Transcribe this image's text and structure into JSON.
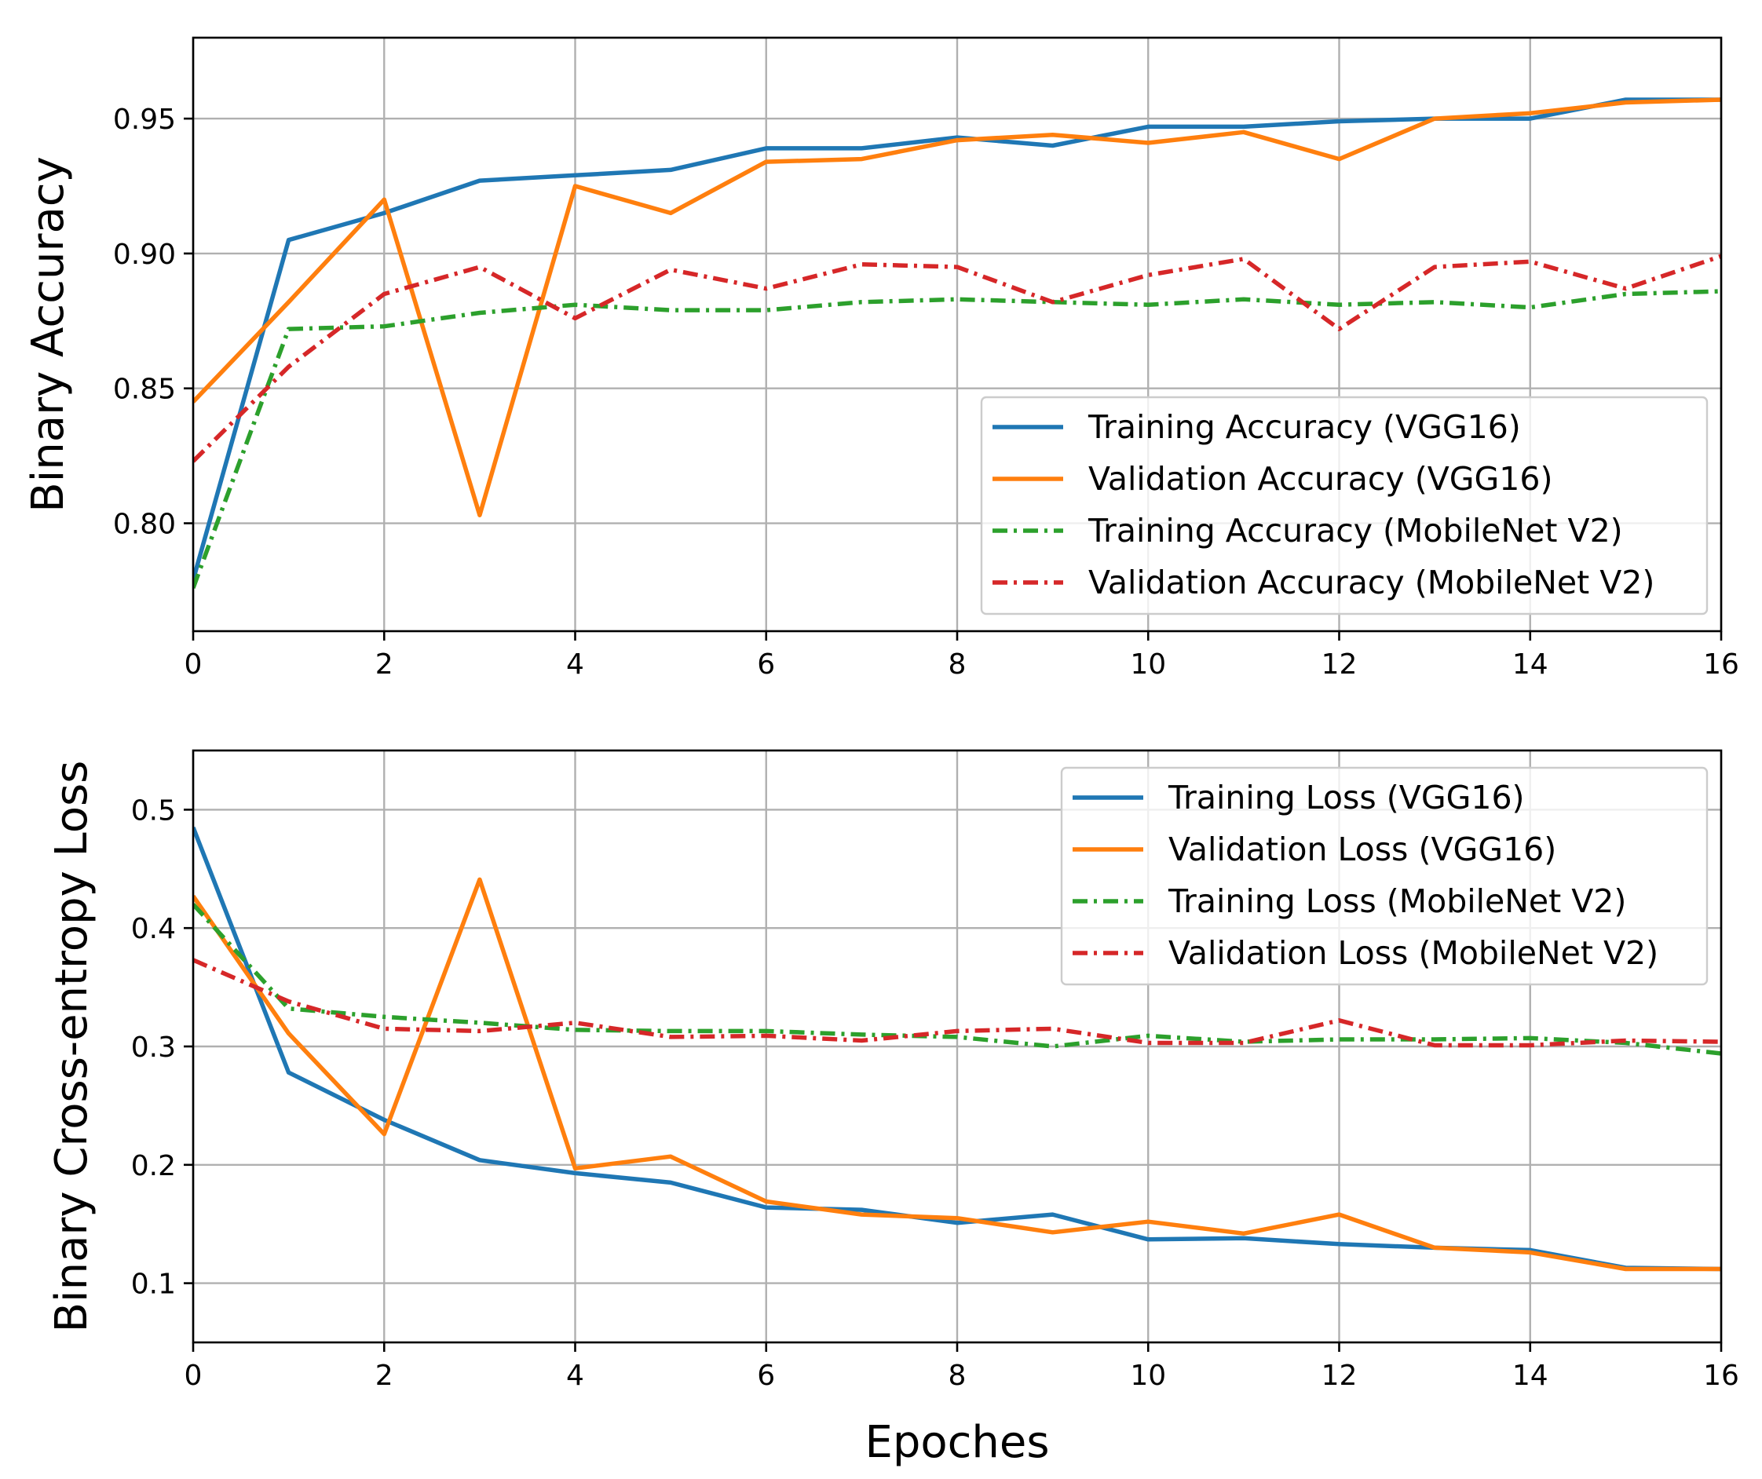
{
  "chart_data": [
    {
      "type": "line",
      "id": "accuracy",
      "ylabel": "Binary Accuracy",
      "xlabel": "",
      "xlim": [
        0,
        16
      ],
      "ylim": [
        0.76,
        0.98
      ],
      "xticks": [
        0,
        2,
        4,
        6,
        8,
        10,
        12,
        14,
        16
      ],
      "yticks": [
        0.8,
        0.85,
        0.9,
        0.95
      ],
      "ytick_labels": [
        "0.80",
        "0.85",
        "0.90",
        "0.95"
      ],
      "grid": true,
      "legend": "lower-right",
      "x": [
        0,
        1,
        2,
        3,
        4,
        5,
        6,
        7,
        8,
        9,
        10,
        11,
        12,
        13,
        14,
        15,
        16
      ],
      "series": [
        {
          "name": "Training Accuracy (VGG16)",
          "color": "#1f77b4",
          "style": "solid",
          "values": [
            0.779,
            0.905,
            0.915,
            0.927,
            0.929,
            0.931,
            0.939,
            0.939,
            0.943,
            0.94,
            0.947,
            0.947,
            0.949,
            0.95,
            0.95,
            0.957,
            0.957
          ]
        },
        {
          "name": "Validation Accuracy (VGG16)",
          "color": "#ff7f0e",
          "style": "solid",
          "values": [
            0.845,
            0.882,
            0.92,
            0.803,
            0.925,
            0.915,
            0.934,
            0.935,
            0.942,
            0.944,
            0.941,
            0.945,
            0.935,
            0.95,
            0.952,
            0.956,
            0.957
          ]
        },
        {
          "name": "Training Accuracy (MobileNet V2)",
          "color": "#2ca02c",
          "style": "dashdot",
          "values": [
            0.776,
            0.872,
            0.873,
            0.878,
            0.881,
            0.879,
            0.879,
            0.882,
            0.883,
            0.882,
            0.881,
            0.883,
            0.881,
            0.882,
            0.88,
            0.885,
            0.886
          ]
        },
        {
          "name": "Validation Accuracy (MobileNet V2)",
          "color": "#d62728",
          "style": "dashdot",
          "values": [
            0.823,
            0.858,
            0.885,
            0.895,
            0.876,
            0.894,
            0.887,
            0.896,
            0.895,
            0.882,
            0.892,
            0.898,
            0.872,
            0.895,
            0.897,
            0.887,
            0.899
          ]
        }
      ]
    },
    {
      "type": "line",
      "id": "loss",
      "ylabel": "Binary Cross-entropy Loss",
      "xlabel": "Epoches",
      "xlim": [
        0,
        16
      ],
      "ylim": [
        0.05,
        0.55
      ],
      "xticks": [
        0,
        2,
        4,
        6,
        8,
        10,
        12,
        14,
        16
      ],
      "yticks": [
        0.1,
        0.2,
        0.3,
        0.4,
        0.5
      ],
      "ytick_labels": [
        "0.1",
        "0.2",
        "0.3",
        "0.4",
        "0.5"
      ],
      "grid": true,
      "legend": "upper-right",
      "x": [
        0,
        1,
        2,
        3,
        4,
        5,
        6,
        7,
        8,
        9,
        10,
        11,
        12,
        13,
        14,
        15,
        16
      ],
      "series": [
        {
          "name": "Training Loss (VGG16)",
          "color": "#1f77b4",
          "style": "solid",
          "values": [
            0.485,
            0.278,
            0.238,
            0.204,
            0.193,
            0.185,
            0.164,
            0.162,
            0.151,
            0.158,
            0.137,
            0.138,
            0.133,
            0.13,
            0.128,
            0.113,
            0.112
          ]
        },
        {
          "name": "Validation Loss (VGG16)",
          "color": "#ff7f0e",
          "style": "solid",
          "values": [
            0.427,
            0.311,
            0.226,
            0.441,
            0.197,
            0.207,
            0.169,
            0.158,
            0.155,
            0.143,
            0.152,
            0.142,
            0.158,
            0.13,
            0.126,
            0.112,
            0.112
          ]
        },
        {
          "name": "Training Loss (MobileNet V2)",
          "color": "#2ca02c",
          "style": "dashdot",
          "values": [
            0.42,
            0.332,
            0.325,
            0.32,
            0.314,
            0.313,
            0.313,
            0.31,
            0.308,
            0.3,
            0.309,
            0.304,
            0.306,
            0.306,
            0.307,
            0.303,
            0.294
          ]
        },
        {
          "name": "Validation Loss (MobileNet V2)",
          "color": "#d62728",
          "style": "dashdot",
          "values": [
            0.373,
            0.338,
            0.315,
            0.313,
            0.32,
            0.308,
            0.309,
            0.305,
            0.313,
            0.315,
            0.303,
            0.303,
            0.322,
            0.301,
            0.301,
            0.305,
            0.304
          ]
        }
      ]
    }
  ]
}
